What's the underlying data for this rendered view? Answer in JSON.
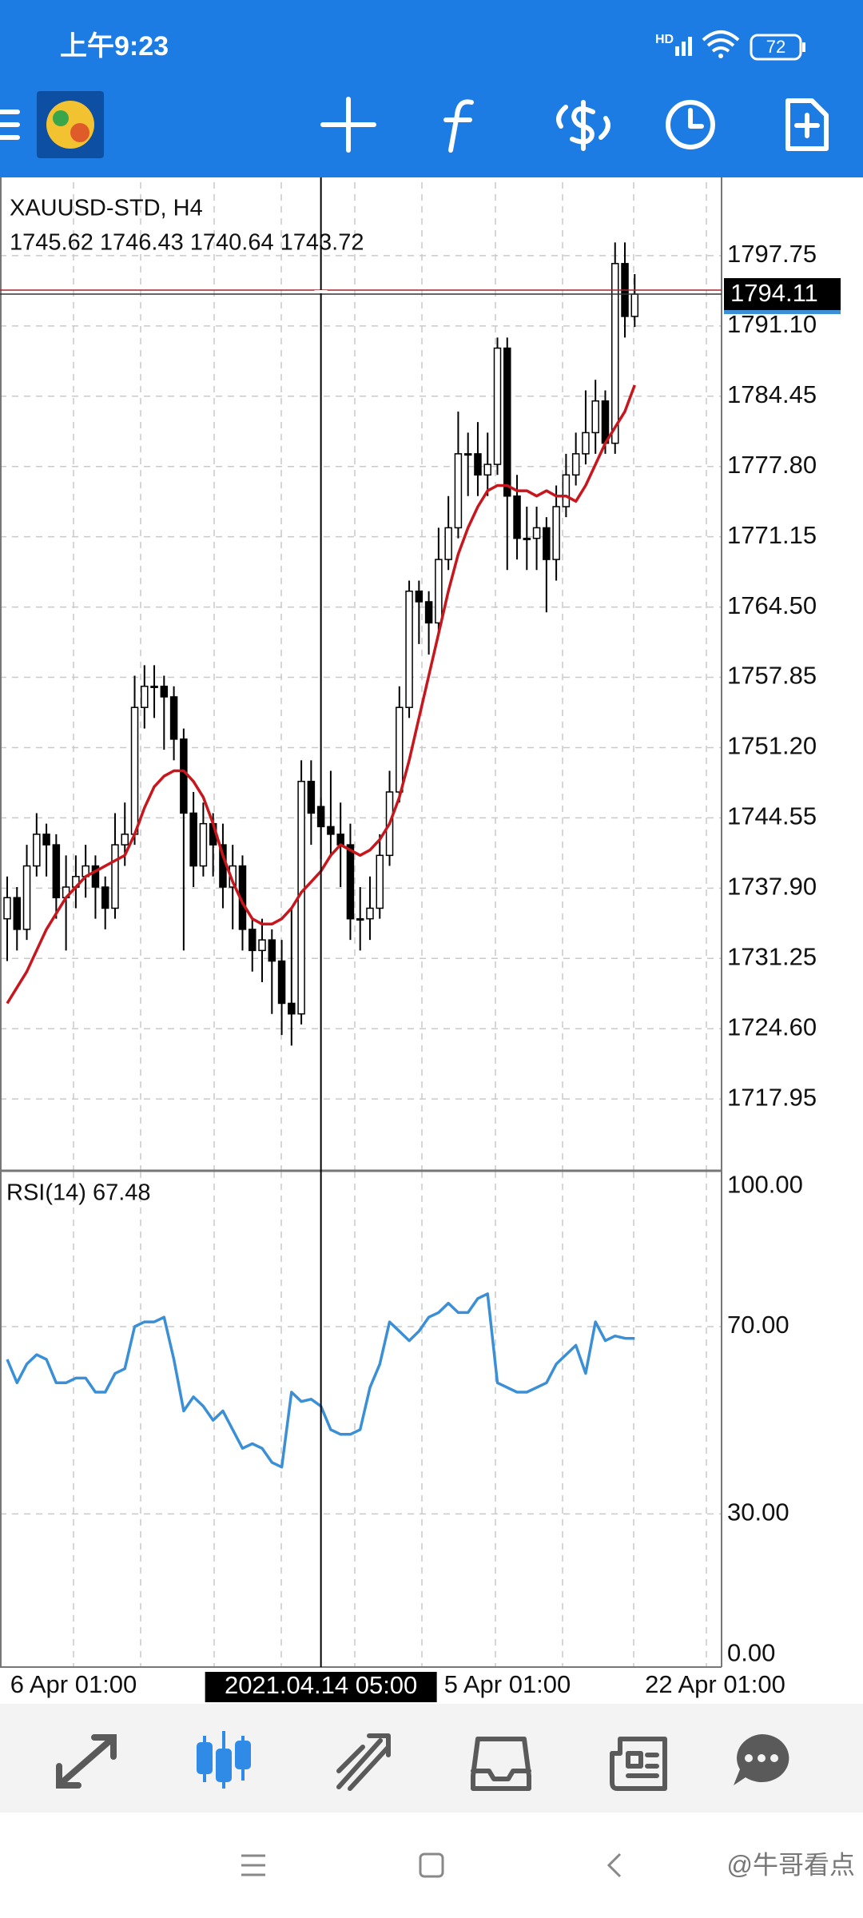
{
  "status_bar": {
    "time": "上午9:23",
    "battery": "72"
  },
  "chart_data": {
    "type": "candlestick",
    "symbol": "XAUUSD-STD, H4",
    "ohlc_header": "1745.62 1746.43 1740.64 1743.72",
    "ylim": [
      1711.23,
      1804.7
    ],
    "yticks": [
      1797.75,
      {
        "value": 1791.1,
        "label": "1791.10"
      },
      1784.45,
      {
        "value": 1777.8,
        "label": "1777.80"
      },
      1771.15,
      {
        "value": 1764.5,
        "label": "1764.50"
      },
      1757.85,
      {
        "value": 1751.2,
        "label": "1751.20"
      },
      1744.55,
      {
        "value": 1737.9,
        "label": "1737.90"
      },
      1731.25,
      {
        "value": 1724.6,
        "label": "1724.60"
      },
      1717.95
    ],
    "grid": true,
    "current_price": 1794.11,
    "candles": [
      [
        1735,
        1739,
        1731,
        1737
      ],
      [
        1737,
        1738,
        1732,
        1734
      ],
      [
        1734,
        1742,
        1733,
        1740
      ],
      [
        1740,
        1745,
        1739,
        1743
      ],
      [
        1743,
        1744,
        1739,
        1742
      ],
      [
        1742,
        1743,
        1735,
        1737
      ],
      [
        1737,
        1741,
        1732,
        1738
      ],
      [
        1738,
        1741,
        1736,
        1739
      ],
      [
        1739,
        1742,
        1737,
        1740
      ],
      [
        1740,
        1741,
        1735,
        1738
      ],
      [
        1738,
        1739,
        1734,
        1736
      ],
      [
        1736,
        1745,
        1735,
        1742
      ],
      [
        1742,
        1746,
        1740,
        1743
      ],
      [
        1743,
        1758,
        1742,
        1755
      ],
      [
        1755,
        1759,
        1753,
        1757
      ],
      [
        1757,
        1759,
        1754,
        1757
      ],
      [
        1757,
        1758,
        1751,
        1756
      ],
      [
        1756,
        1757,
        1750,
        1752
      ],
      [
        1752,
        1753,
        1732,
        1745
      ],
      [
        1745,
        1747,
        1738,
        1740
      ],
      [
        1740,
        1746,
        1739,
        1744
      ],
      [
        1744,
        1745,
        1739,
        1742
      ],
      [
        1742,
        1744,
        1736,
        1738
      ],
      [
        1738,
        1742,
        1734,
        1740
      ],
      [
        1740,
        1741,
        1732,
        1734
      ],
      [
        1734,
        1735,
        1730,
        1732
      ],
      [
        1732,
        1735,
        1729,
        1733
      ],
      [
        1733,
        1734,
        1726,
        1731
      ],
      [
        1731,
        1733,
        1724,
        1727
      ],
      [
        1727,
        1736,
        1723,
        1726
      ],
      [
        1726,
        1750,
        1725,
        1748
      ],
      [
        1748,
        1750,
        1742,
        1745
      ],
      [
        1745.62,
        1746.43,
        1740.64,
        1743.72
      ],
      [
        1743.72,
        1749,
        1741,
        1743
      ],
      [
        1743,
        1746,
        1738,
        1742
      ],
      [
        1742,
        1744,
        1733,
        1735
      ],
      [
        1735,
        1738,
        1732,
        1735
      ],
      [
        1735,
        1739,
        1733,
        1736
      ],
      [
        1736,
        1743,
        1735,
        1741
      ],
      [
        1741,
        1749,
        1740,
        1747
      ],
      [
        1747,
        1757,
        1746,
        1755
      ],
      [
        1755,
        1767,
        1754,
        1766
      ],
      [
        1766,
        1767,
        1761,
        1765
      ],
      [
        1765,
        1766,
        1760,
        1763
      ],
      [
        1763,
        1772,
        1762,
        1769
      ],
      [
        1769,
        1775,
        1768,
        1772
      ],
      [
        1772,
        1783,
        1771,
        1779
      ],
      [
        1779,
        1781,
        1775,
        1779
      ],
      [
        1779,
        1782,
        1775,
        1777
      ],
      [
        1777,
        1781,
        1775,
        1778
      ],
      [
        1778,
        1790,
        1777,
        1789
      ],
      [
        1789,
        1790,
        1768,
        1775
      ],
      [
        1775,
        1777,
        1769,
        1771
      ],
      [
        1771,
        1774,
        1768,
        1771
      ],
      [
        1771,
        1774,
        1768,
        1772
      ],
      [
        1772,
        1773,
        1764,
        1769
      ],
      [
        1769,
        1776,
        1767,
        1774
      ],
      [
        1774,
        1779,
        1773,
        1777
      ],
      [
        1777,
        1781,
        1776,
        1779
      ],
      [
        1779,
        1785,
        1778,
        1781
      ],
      [
        1781,
        1786,
        1779,
        1784
      ],
      [
        1784,
        1785,
        1779,
        1780
      ],
      [
        1780,
        1799,
        1779,
        1797
      ],
      [
        1797,
        1799,
        1790,
        1792
      ],
      [
        1792,
        1796,
        1791,
        1794.11
      ]
    ],
    "ma": {
      "color": "#c8161d",
      "values": [
        1727,
        1728.5,
        1730,
        1732,
        1734,
        1735.5,
        1737,
        1738,
        1739,
        1739.5,
        1740,
        1740.5,
        1741,
        1743,
        1745.5,
        1747.5,
        1748.5,
        1749,
        1749,
        1748,
        1746.5,
        1744,
        1741,
        1738.5,
        1736.5,
        1735,
        1734.5,
        1734.5,
        1735,
        1736,
        1737.5,
        1738.5,
        1739.5,
        1741,
        1742,
        1741.5,
        1741,
        1741.5,
        1742.5,
        1744,
        1746.5,
        1750,
        1754,
        1758,
        1762,
        1766,
        1769.5,
        1772,
        1774,
        1775.5,
        1776,
        1776,
        1775.5,
        1775.5,
        1775,
        1775.5,
        1775,
        1775,
        1774.5,
        1776,
        1778,
        1780,
        1781.5,
        1783,
        1785.5
      ]
    },
    "rsi": {
      "label": "RSI(14) 67.48",
      "color": "#3a8fd6",
      "ylim": [
        -2.7,
        103.1
      ],
      "yticks": [
        {
          "value": 100,
          "label": "100.00"
        },
        {
          "value": 70,
          "label": "70.00"
        },
        {
          "value": 30,
          "label": "30.00"
        },
        {
          "value": 0,
          "label": "0.00"
        }
      ],
      "values": [
        63,
        58,
        62,
        64,
        63,
        58,
        58,
        59,
        59,
        56,
        56,
        60,
        61,
        70,
        71,
        71,
        72,
        63,
        52,
        55,
        53,
        50,
        52,
        48,
        44,
        45,
        44,
        41,
        40,
        56,
        54,
        54.5,
        53,
        48,
        47,
        47,
        48,
        57,
        62,
        71,
        69,
        67,
        69,
        72,
        73,
        75,
        73,
        73,
        76,
        77,
        58,
        57,
        56,
        56,
        57,
        58,
        62,
        64,
        66,
        60,
        71,
        67,
        68,
        67.5,
        67.48
      ]
    },
    "time_labels": [
      "6 Apr 01:00",
      "5 Apr 01:00",
      "22 Apr 01:00"
    ],
    "crosshair_label": "2021.04.14 05:00"
  },
  "watermark": "@牛哥看点"
}
